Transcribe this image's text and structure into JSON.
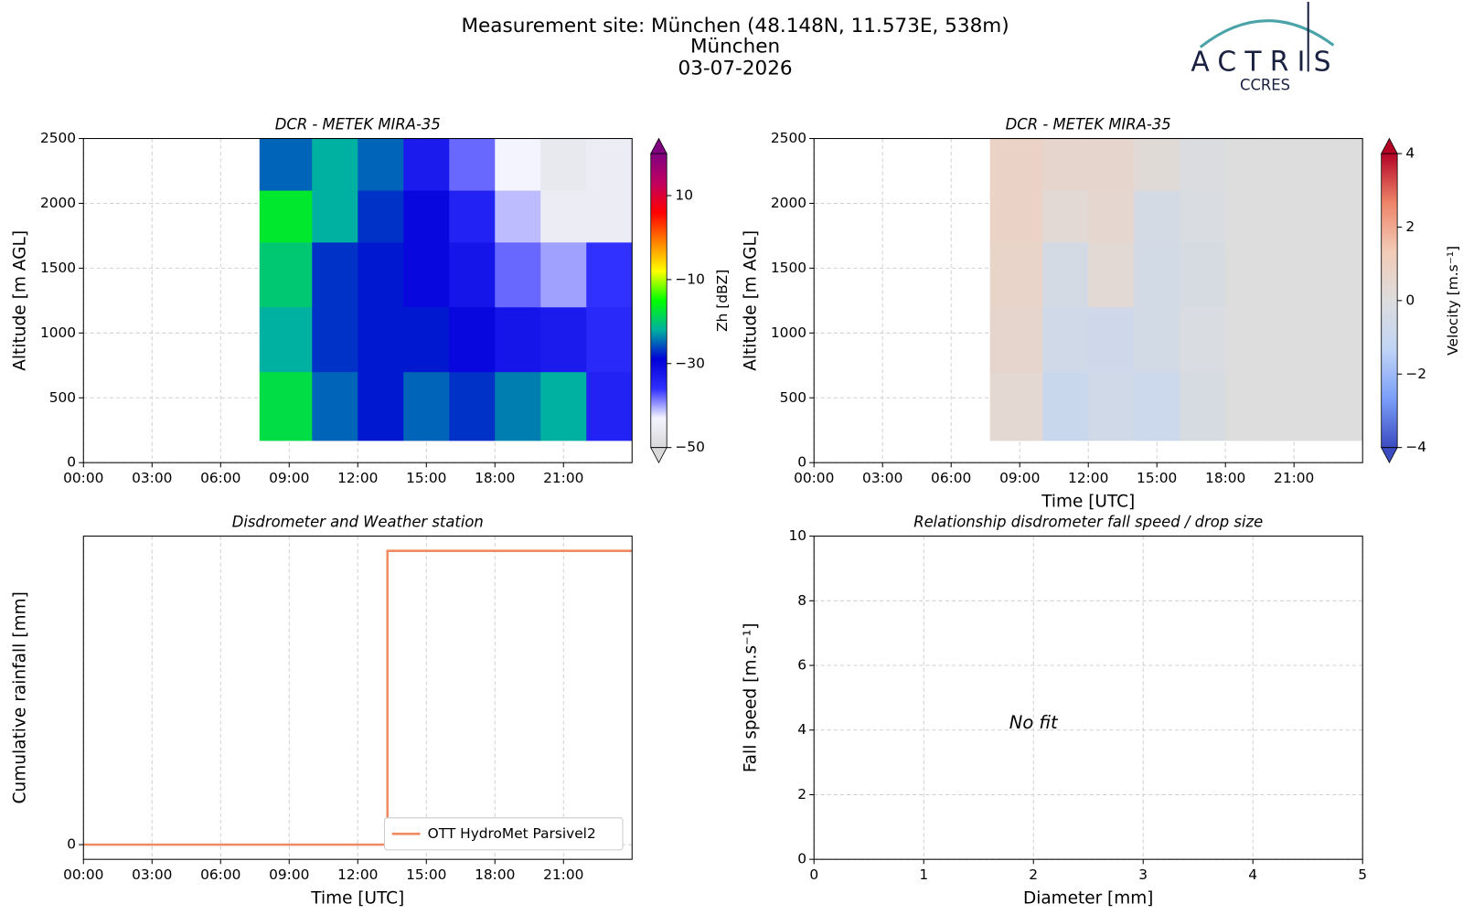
{
  "header": {
    "title": "Measurement site: München (48.148N, 11.573E, 538m)",
    "subtitle": "München",
    "date": "03-07-2026",
    "logo": "ACTRIS",
    "logo_subtitle": "CCRES"
  },
  "chart_data": [
    {
      "type": "heatmap",
      "title": "DCR - METEK MIRA-35",
      "ylabel": "Altitude [m AGL]",
      "xlim": [
        0,
        24
      ],
      "ylim": [
        0,
        2500
      ],
      "xticks": [
        {
          "value": 0,
          "label": "00:00"
        },
        {
          "value": 3,
          "label": "03:00"
        },
        {
          "value": 6,
          "label": "06:00"
        },
        {
          "value": 9,
          "label": "09:00"
        },
        {
          "value": 12,
          "label": "12:00"
        },
        {
          "value": 15,
          "label": "15:00"
        },
        {
          "value": 18,
          "label": "18:00"
        },
        {
          "value": 21,
          "label": "21:00"
        }
      ],
      "yticks": [
        0,
        500,
        1000,
        1500,
        2000,
        2500
      ],
      "grid": true,
      "x": [
        7.7,
        10,
        12,
        14,
        16,
        18,
        20,
        22,
        24
      ],
      "y": [
        170,
        700,
        1200,
        1700,
        2100,
        2500
      ],
      "values": [
        [
          -18,
          -25,
          -28,
          -25,
          -27,
          -24,
          -22,
          -34
        ],
        [
          -22,
          -27,
          -28,
          -28,
          -30,
          -32,
          -33,
          -35
        ],
        [
          -20,
          -27,
          -28,
          -30,
          -32,
          -38,
          -40,
          -36
        ],
        [
          -17,
          -22,
          -27,
          -30,
          -34,
          -41,
          -45,
          -45
        ],
        [
          -25,
          -22,
          -25,
          -33,
          -38,
          -43,
          -46,
          -45
        ]
      ],
      "colorbar": {
        "label": "Zh [dBZ]",
        "lim": [
          -50,
          20
        ],
        "ticks": [
          {
            "value": -50,
            "label": "−50"
          },
          {
            "value": -30,
            "label": "−30"
          },
          {
            "value": -10,
            "label": "−10"
          },
          10
        ],
        "colors": [
          "#d9d9d9",
          "#f4f4ff",
          "#3030ff",
          "#0000d8",
          "#00b0a0",
          "#00ff00",
          "#ffff00",
          "#ff8000",
          "#ff0000",
          "#c00060",
          "#800080"
        ]
      }
    },
    {
      "type": "heatmap",
      "title": "DCR - METEK MIRA-35",
      "xlabel": "Time [UTC]",
      "ylabel": "Altitude [m AGL]",
      "xlim": [
        0,
        24
      ],
      "ylim": [
        0,
        2500
      ],
      "xticks": [
        {
          "value": 0,
          "label": "00:00"
        },
        {
          "value": 3,
          "label": "03:00"
        },
        {
          "value": 6,
          "label": "06:00"
        },
        {
          "value": 9,
          "label": "09:00"
        },
        {
          "value": 12,
          "label": "12:00"
        },
        {
          "value": 15,
          "label": "15:00"
        },
        {
          "value": 18,
          "label": "18:00"
        },
        {
          "value": 21,
          "label": "21:00"
        }
      ],
      "yticks": [
        0,
        500,
        1000,
        1500,
        2000,
        2500
      ],
      "grid": true,
      "x": [
        7.7,
        10,
        12,
        14,
        16,
        18,
        20,
        22,
        24
      ],
      "y": [
        170,
        700,
        1200,
        1700,
        2100,
        2500
      ],
      "values": [
        [
          0.4,
          -0.9,
          -0.6,
          -0.8,
          -0.3,
          0,
          0,
          0
        ],
        [
          0.6,
          -0.6,
          -0.7,
          -0.5,
          -0.2,
          0,
          0,
          0
        ],
        [
          0.7,
          -0.4,
          0.3,
          -0.5,
          -0.3,
          0,
          0,
          0
        ],
        [
          0.8,
          0.3,
          0.5,
          -0.4,
          -0.2,
          0,
          0,
          0
        ],
        [
          0.8,
          0.6,
          0.6,
          0.2,
          -0.1,
          0,
          0,
          0
        ]
      ],
      "colorbar": {
        "label": "Velocity [m.s⁻¹]",
        "lim": [
          -4,
          4
        ],
        "ticks": [
          {
            "value": -4,
            "label": "−4"
          },
          {
            "value": -2,
            "label": "−2"
          },
          0,
          2,
          4
        ],
        "colors": [
          "#3b4cc0",
          "#7b9ff9",
          "#c0d4f5",
          "#dddddd",
          "#f2cbb7",
          "#ee8468",
          "#b40426"
        ]
      }
    },
    {
      "type": "line",
      "title": "Disdrometer and Weather station",
      "xlabel": "Time [UTC]",
      "ylabel": "Cumulative rainfall [mm]",
      "xlim": [
        0,
        24
      ],
      "ylim": [
        -0.01,
        0.21
      ],
      "xticks": [
        {
          "value": 0,
          "label": "00:00"
        },
        {
          "value": 3,
          "label": "03:00"
        },
        {
          "value": 6,
          "label": "06:00"
        },
        {
          "value": 9,
          "label": "09:00"
        },
        {
          "value": 12,
          "label": "12:00"
        },
        {
          "value": 15,
          "label": "15:00"
        },
        {
          "value": 18,
          "label": "18:00"
        },
        {
          "value": 21,
          "label": "21:00"
        }
      ],
      "yticks": [
        0
      ],
      "grid": true,
      "legend": "lower right",
      "x": [
        0,
        13.3,
        13.3,
        24
      ],
      "series": [
        {
          "name": "OTT HydroMet Parsivel2",
          "color": "#ef8a62",
          "values": [
            0,
            0,
            0.2,
            0.2
          ]
        }
      ]
    },
    {
      "type": "scatter",
      "title": "Relationship disdrometer fall speed / drop size",
      "xlabel": "Diameter [mm]",
      "ylabel": "Fall speed [m.s⁻¹]",
      "xlim": [
        0,
        5
      ],
      "ylim": [
        0,
        10
      ],
      "xticks": [
        0,
        1,
        2,
        3,
        4,
        5
      ],
      "yticks": [
        0,
        2,
        4,
        6,
        8,
        10
      ],
      "grid": true,
      "annotation": "No fit"
    }
  ]
}
